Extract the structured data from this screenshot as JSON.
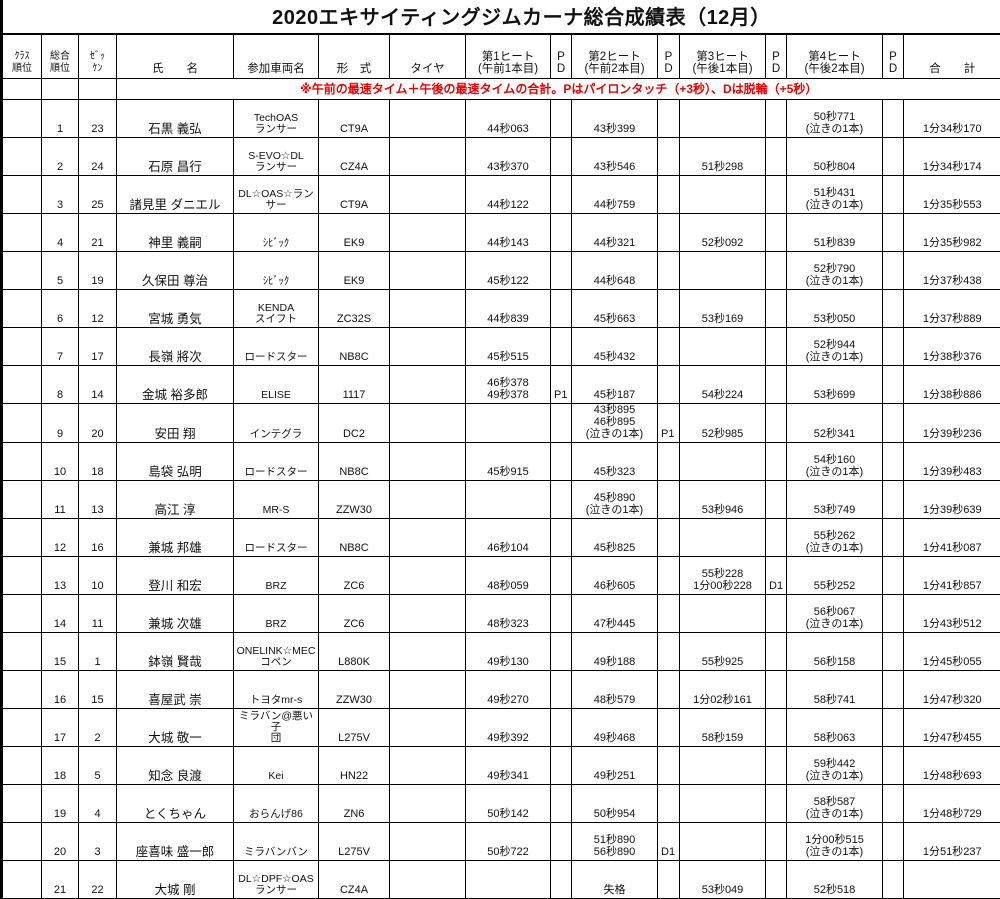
{
  "title": "2020エキサイティングジムカーナ総合成績表（12月）",
  "headers": {
    "class_rank": "ｸﾗｽ\n順位",
    "overall_rank": "総合\n順位",
    "zekken": "ｾﾞｯ\nｹﾝ",
    "name": "氏　　名",
    "car": "参加車両名",
    "model": "形　式",
    "tire": "タイヤ",
    "heat1": "第1ヒート\n(午前1本目)",
    "pd": "P\nD",
    "heat2": "第2ヒート\n(午前2本目)",
    "heat3": "第3ヒート\n(午後1本目)",
    "heat4": "第4ヒート\n(午後2本目)",
    "total": "合　　計"
  },
  "note": "※午前の最速タイム＋午後の最速タイムの合計。Pはパイロンタッチ（+3秒）、Dは脱輪（+5秒）",
  "rows": [
    {
      "rank": "1",
      "zekken": "23",
      "name": "石黒 義弘",
      "car": "TechOAS\nランサー",
      "model": "CT9A",
      "tire": "",
      "h1": "44秒063",
      "p1": "",
      "h2": "43秒399",
      "p2": "",
      "h3": "",
      "p3": "",
      "h4": "50秒771\n(泣きの1本)",
      "p4": "",
      "total": "1分34秒170"
    },
    {
      "rank": "2",
      "zekken": "24",
      "name": "石原 昌行",
      "car": "S-EVO☆DL\nランサー",
      "model": "CZ4A",
      "tire": "",
      "h1": "43秒370",
      "p1": "",
      "h2": "43秒546",
      "p2": "",
      "h3": "51秒298",
      "p3": "",
      "h4": "50秒804",
      "p4": "",
      "total": "1分34秒174"
    },
    {
      "rank": "3",
      "zekken": "25",
      "name": "諸見里 ダニエル",
      "car": "DL☆OAS☆ラン\nサー",
      "model": "CT9A",
      "tire": "",
      "h1": "44秒122",
      "p1": "",
      "h2": "44秒759",
      "p2": "",
      "h3": "",
      "p3": "",
      "h4": "51秒431\n(泣きの1本)",
      "p4": "",
      "total": "1分35秒553"
    },
    {
      "rank": "4",
      "zekken": "21",
      "name": "神里 義嗣",
      "car": "ｼﾋﾞｯｸ",
      "model": "EK9",
      "tire": "",
      "h1": "44秒143",
      "p1": "",
      "h2": "44秒321",
      "p2": "",
      "h3": "52秒092",
      "p3": "",
      "h4": "51秒839",
      "p4": "",
      "total": "1分35秒982"
    },
    {
      "rank": "5",
      "zekken": "19",
      "name": "久保田 尊治",
      "car": "ｼﾋﾞｯｸ",
      "model": "EK9",
      "tire": "",
      "h1": "45秒122",
      "p1": "",
      "h2": "44秒648",
      "p2": "",
      "h3": "",
      "p3": "",
      "h4": "52秒790\n(泣きの1本)",
      "p4": "",
      "total": "1分37秒438"
    },
    {
      "rank": "6",
      "zekken": "12",
      "name": "宮城 勇気",
      "car": "KENDA\nスイフト",
      "model": "ZC32S",
      "tire": "",
      "h1": "44秒839",
      "p1": "",
      "h2": "45秒663",
      "p2": "",
      "h3": "53秒169",
      "p3": "",
      "h4": "53秒050",
      "p4": "",
      "total": "1分37秒889"
    },
    {
      "rank": "7",
      "zekken": "17",
      "name": "長嶺 將次",
      "car": "ロードスター",
      "model": "NB8C",
      "tire": "",
      "h1": "45秒515",
      "p1": "",
      "h2": "45秒432",
      "p2": "",
      "h3": "",
      "p3": "",
      "h4": "52秒944\n(泣きの1本)",
      "p4": "",
      "total": "1分38秒376"
    },
    {
      "rank": "8",
      "zekken": "14",
      "name": "金城 裕多郎",
      "car": "ELISE",
      "model": "1117",
      "tire": "",
      "h1": "46秒378\n49秒378",
      "p1": "P1",
      "h2": "45秒187",
      "p2": "",
      "h3": "54秒224",
      "p3": "",
      "h4": "53秒699",
      "p4": "",
      "total": "1分38秒886"
    },
    {
      "rank": "9",
      "zekken": "20",
      "name": "安田 翔",
      "car": "インテグラ",
      "model": "DC2",
      "tire": "",
      "h1": "",
      "p1": "",
      "h2": "43秒895\n46秒895\n(泣きの1本)",
      "p2": "P1",
      "h3": "52秒985",
      "p3": "",
      "h4": "52秒341",
      "p4": "",
      "total": "1分39秒236"
    },
    {
      "rank": "10",
      "zekken": "18",
      "name": "島袋 弘明",
      "car": "ロードスター",
      "model": "NB8C",
      "tire": "",
      "h1": "45秒915",
      "p1": "",
      "h2": "45秒323",
      "p2": "",
      "h3": "",
      "p3": "",
      "h4": "54秒160\n(泣きの1本)",
      "p4": "",
      "total": "1分39秒483"
    },
    {
      "rank": "11",
      "zekken": "13",
      "name": "高江 淳",
      "car": "MR-S",
      "model": "ZZW30",
      "tire": "",
      "h1": "",
      "p1": "",
      "h2": "45秒890\n(泣きの1本)",
      "p2": "",
      "h3": "53秒946",
      "p3": "",
      "h4": "53秒749",
      "p4": "",
      "total": "1分39秒639"
    },
    {
      "rank": "12",
      "zekken": "16",
      "name": "兼城 邦雄",
      "car": "ロードスター",
      "model": "NB8C",
      "tire": "",
      "h1": "46秒104",
      "p1": "",
      "h2": "45秒825",
      "p2": "",
      "h3": "",
      "p3": "",
      "h4": "55秒262\n(泣きの1本)",
      "p4": "",
      "total": "1分41秒087"
    },
    {
      "rank": "13",
      "zekken": "10",
      "name": "登川 和宏",
      "car": "BRZ",
      "model": "ZC6",
      "tire": "",
      "h1": "48秒059",
      "p1": "",
      "h2": "46秒605",
      "p2": "",
      "h3": "55秒228\n1分00秒228",
      "p3": "D1",
      "h4": "55秒252",
      "p4": "",
      "total": "1分41秒857"
    },
    {
      "rank": "14",
      "zekken": "11",
      "name": "兼城 次雄",
      "car": "BRZ",
      "model": "ZC6",
      "tire": "",
      "h1": "48秒323",
      "p1": "",
      "h2": "47秒445",
      "p2": "",
      "h3": "",
      "p3": "",
      "h4": "56秒067\n(泣きの1本)",
      "p4": "",
      "total": "1分43秒512"
    },
    {
      "rank": "15",
      "zekken": "1",
      "name": "鉢嶺 賢哉",
      "car": "ONELINK☆MEC\nコペン",
      "model": "L880K",
      "tire": "",
      "h1": "49秒130",
      "p1": "",
      "h2": "49秒188",
      "p2": "",
      "h3": "55秒925",
      "p3": "",
      "h4": "56秒158",
      "p4": "",
      "total": "1分45秒055"
    },
    {
      "rank": "16",
      "zekken": "15",
      "name": "喜屋武 崇",
      "car": "トヨタmr-s",
      "model": "ZZW30",
      "tire": "",
      "h1": "49秒270",
      "p1": "",
      "h2": "48秒579",
      "p2": "",
      "h3": "1分02秒161",
      "p3": "",
      "h4": "58秒741",
      "p4": "",
      "total": "1分47秒320"
    },
    {
      "rank": "17",
      "zekken": "2",
      "name": "大城 敬一",
      "car": "ミラバン@悪い子\n団",
      "model": "L275V",
      "tire": "",
      "h1": "49秒392",
      "p1": "",
      "h2": "49秒468",
      "p2": "",
      "h3": "58秒159",
      "p3": "",
      "h4": "58秒063",
      "p4": "",
      "total": "1分47秒455"
    },
    {
      "rank": "18",
      "zekken": "5",
      "name": "知念 良渡",
      "car": "Kei",
      "model": "HN22",
      "tire": "",
      "h1": "49秒341",
      "p1": "",
      "h2": "49秒251",
      "p2": "",
      "h3": "",
      "p3": "",
      "h4": "59秒442\n(泣きの1本)",
      "p4": "",
      "total": "1分48秒693"
    },
    {
      "rank": "19",
      "zekken": "4",
      "name": "とくちゃん",
      "car": "おらんげ86",
      "model": "ZN6",
      "tire": "",
      "h1": "50秒142",
      "p1": "",
      "h2": "50秒954",
      "p2": "",
      "h3": "",
      "p3": "",
      "h4": "58秒587\n(泣きの1本)",
      "p4": "",
      "total": "1分48秒729"
    },
    {
      "rank": "20",
      "zekken": "3",
      "name": "座喜味 盛一郎",
      "car": "ミラバンバン",
      "model": "L275V",
      "tire": "",
      "h1": "50秒722",
      "p1": "",
      "h2": "51秒890\n56秒890",
      "p2": "D1",
      "h3": "",
      "p3": "",
      "h4": "1分00秒515\n(泣きの1本)",
      "p4": "",
      "total": "1分51秒237"
    },
    {
      "rank": "21",
      "zekken": "22",
      "name": "大城 剛",
      "car": "DL☆DPF☆OAS\nランサー",
      "model": "CZ4A",
      "tire": "",
      "h1": "",
      "p1": "",
      "h2": "失格",
      "p2": "",
      "h3": "53秒049",
      "p3": "",
      "h4": "52秒518",
      "p4": "",
      "total": ""
    }
  ]
}
